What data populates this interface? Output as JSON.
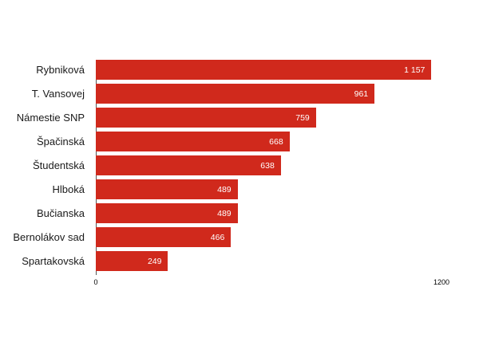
{
  "chart_data": {
    "type": "bar",
    "orientation": "horizontal",
    "title": "",
    "xlabel": "",
    "ylabel": "",
    "categories": [
      "Rybniková",
      "T. Vansovej",
      "Námestie SNP",
      "Špačinská",
      "Študentská",
      "Hlboká",
      "Bučianska",
      "Bernolákov sad",
      "Spartakovská"
    ],
    "values": [
      1157,
      961,
      759,
      668,
      638,
      489,
      489,
      466,
      249
    ],
    "value_labels": [
      "1 157",
      "961",
      "759",
      "668",
      "638",
      "489",
      "489",
      "466",
      "249"
    ],
    "xlim": [
      0,
      1200
    ],
    "x_ticks": [
      "0",
      "1200"
    ],
    "bar_color": "#d0291c",
    "label_color": "#1a1a1a",
    "value_label_color": "#ffffff",
    "grid": false,
    "legend": false
  }
}
